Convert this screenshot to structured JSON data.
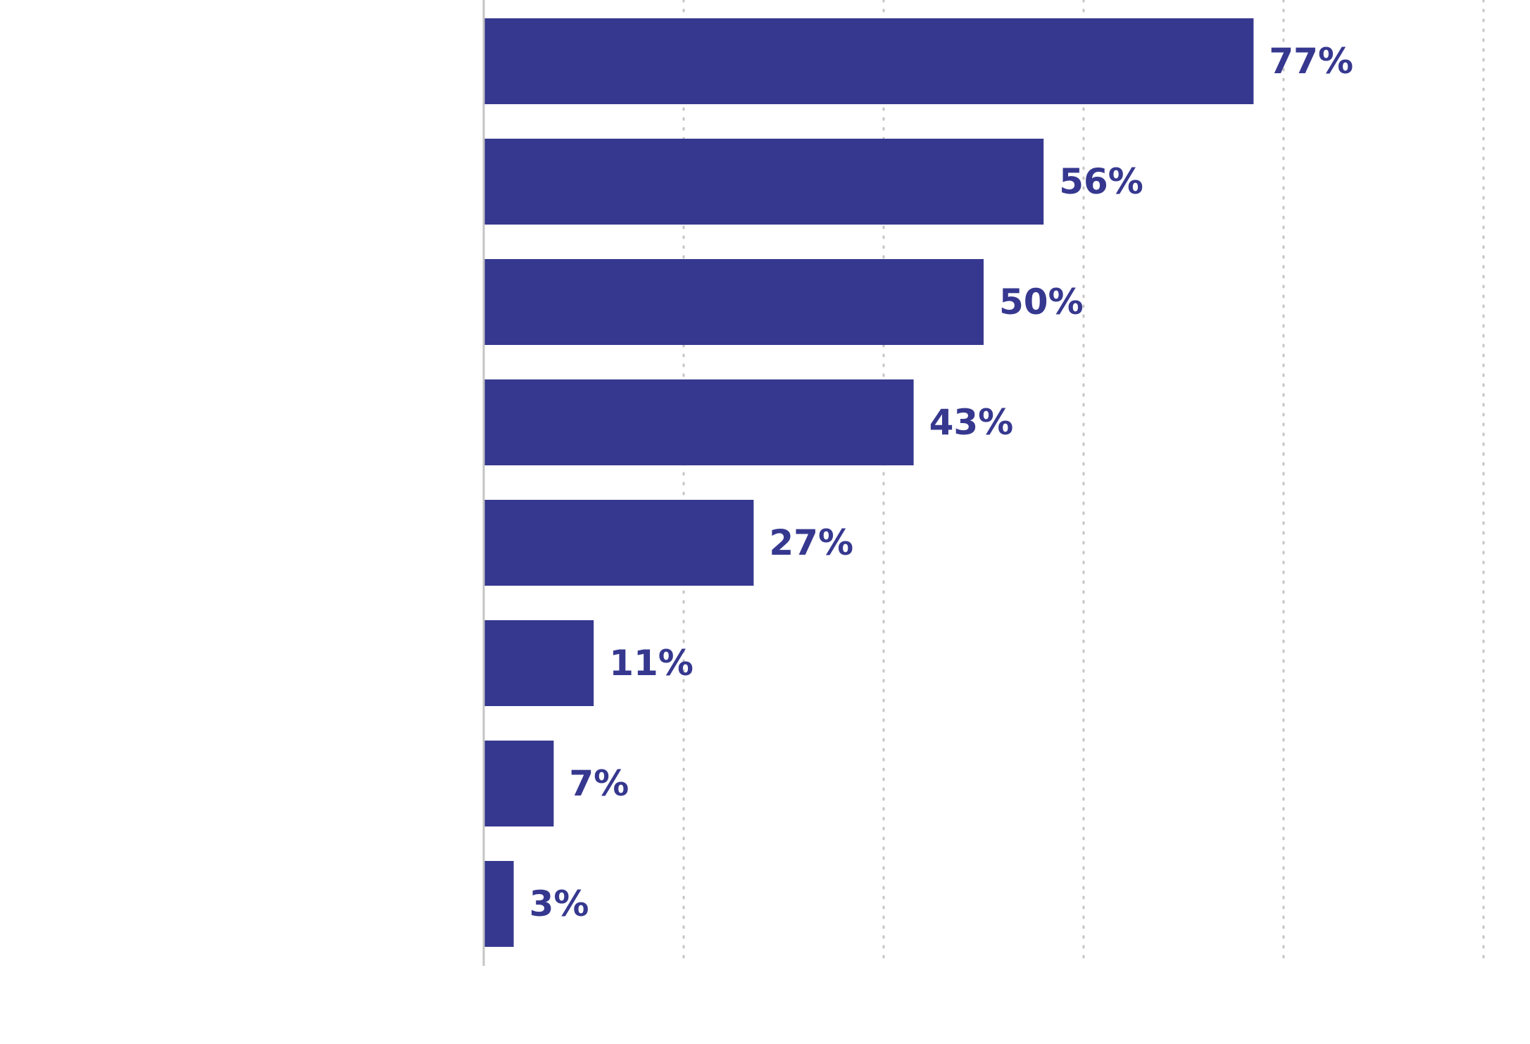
{
  "chart_data": {
    "type": "bar",
    "orientation": "horizontal",
    "categories": [
      "",
      "",
      "",
      "",
      "",
      "",
      "",
      ""
    ],
    "values": [
      77,
      56,
      50,
      43,
      27,
      11,
      7,
      3
    ],
    "value_labels": [
      "77%",
      "56%",
      "50%",
      "43%",
      "27%",
      "11%",
      "7%",
      "3%"
    ],
    "xlim": [
      0,
      100
    ],
    "gridlines": [
      20,
      40,
      60,
      80,
      100
    ],
    "grid": true,
    "grid_style": "dotted",
    "legend": false,
    "title": "",
    "xlabel": "",
    "ylabel": "",
    "colors": {
      "bar": "#36388f",
      "label": "#36388f",
      "grid": "#c4c4c4",
      "axis": "#c4c4c4",
      "background": "#ffffff"
    }
  }
}
